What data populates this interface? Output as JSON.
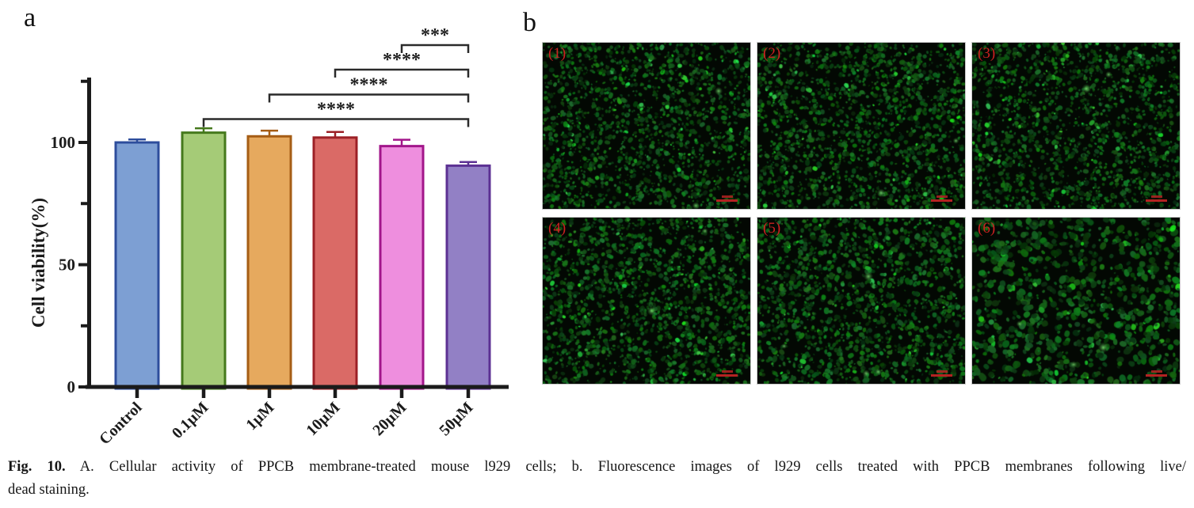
{
  "figure": {
    "panel_a_letter": "a",
    "panel_b_letter": "b"
  },
  "chart_data": {
    "type": "bar",
    "title": "",
    "xlabel": "",
    "ylabel": "Cell viability(%)",
    "categories": [
      "Control",
      "0.1µM",
      "1µM",
      "10µM",
      "20µM",
      "50µM"
    ],
    "values": [
      100,
      104,
      102.5,
      102,
      98.5,
      90.5
    ],
    "errors": [
      1.2,
      1.8,
      2.3,
      2.3,
      2.6,
      1.5
    ],
    "yticks": [
      0,
      50,
      100
    ],
    "minor_yticks": [
      25,
      75,
      125
    ],
    "ylim": [
      0,
      127
    ],
    "grid": "off",
    "legend": "none",
    "bar_fill_colors": [
      "#7d9fd3",
      "#a5cb77",
      "#e6a95e",
      "#da6a66",
      "#ee8ede",
      "#9280c5"
    ],
    "bar_edge_colors": [
      "#2d4d9c",
      "#45791c",
      "#a55d15",
      "#9c2026",
      "#a2158a",
      "#5c3193"
    ],
    "axis_color": "#1b1b1b",
    "significance": [
      {
        "from": "0.1µM",
        "to": "50µM",
        "label": "****"
      },
      {
        "from": "1µM",
        "to": "50µM",
        "label": "****"
      },
      {
        "from": "10µM",
        "to": "50µM",
        "label": "****"
      },
      {
        "from": "20µM",
        "to": "50µM",
        "label": "***"
      }
    ]
  },
  "panel_b": {
    "tiles": [
      {
        "label": "(1)"
      },
      {
        "label": "(2)"
      },
      {
        "label": "(3)"
      },
      {
        "label": "(4)"
      },
      {
        "label": "(5)"
      },
      {
        "label": "(6)"
      }
    ],
    "label_color": "#cc2121",
    "scalebar_color": "#b42222"
  },
  "caption": {
    "prefix": "Fig. 10.",
    "line1": "A. Cellular activity of PPCB membrane-treated mouse l929 cells; b. Fluorescence images of l929 cells treated with PPCB membranes following live/",
    "line2": "dead staining."
  }
}
